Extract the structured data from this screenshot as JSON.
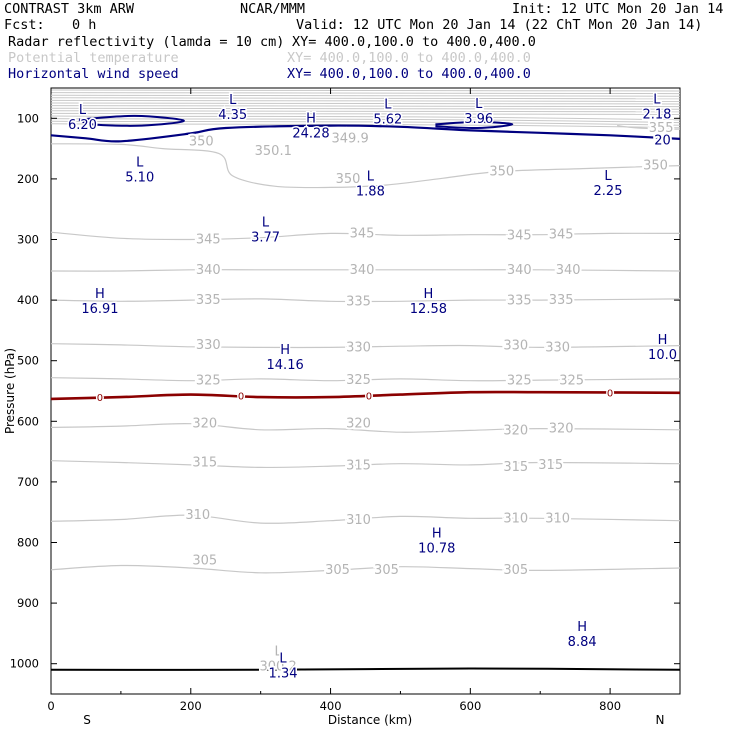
{
  "header": {
    "model": "CONTRAST  3km ARW",
    "center": "NCAR/MMM",
    "init": "Init: 12 UTC Mon 20 Jan 14",
    "fcst_label": "Fcst:",
    "fcst_value": "0 h",
    "valid": "Valid: 12 UTC Mon 20 Jan 14 (22 ChT Mon 20 Jan 14)"
  },
  "fields": [
    {
      "name": "Radar reflectivity (lamda = 10 cm)",
      "xy": "XY= 400.0,100.0 to 400.0,400.0",
      "color": "#000000"
    },
    {
      "name": "Potential temperature",
      "xy": "XY= 400.0,100.0 to 400.0,400.0",
      "color": "#c8c8c8"
    },
    {
      "name": "Horizontal wind speed",
      "xy": "XY= 400.0,100.0 to 400.0,400.0",
      "color": "#000080"
    }
  ],
  "chart_data": {
    "type": "contour",
    "xlabel": "Distance (km)",
    "ylabel": "Pressure (hPa)",
    "xlim": [
      0,
      900
    ],
    "ylim": [
      1050,
      50
    ],
    "y_inverted": true,
    "x_ticks": [
      "0",
      "200",
      "400",
      "600",
      "800"
    ],
    "x_tick_values": [
      0,
      200,
      400,
      600,
      800
    ],
    "y_ticks": [
      "100",
      "200",
      "300",
      "400",
      "500",
      "600",
      "700",
      "800",
      "900",
      "1000"
    ],
    "y_tick_values": [
      100,
      200,
      300,
      400,
      500,
      600,
      700,
      800,
      900,
      1000
    ],
    "x_end_labels": {
      "left": "S",
      "right": "N"
    },
    "colors": {
      "theta": "#c8c8c8",
      "wind": "#000080",
      "freezing": "#8b0000",
      "ground": "#000000"
    },
    "theta_contours": [
      {
        "level": 305,
        "points": [
          [
            0,
            845
          ],
          [
            100,
            838
          ],
          [
            200,
            842
          ],
          [
            300,
            850
          ],
          [
            400,
            846
          ],
          [
            500,
            840
          ],
          [
            600,
            843
          ],
          [
            700,
            846
          ],
          [
            900,
            842
          ]
        ],
        "labels": [
          {
            "x": 220,
            "p": 830,
            "text": "305"
          },
          {
            "x": 410,
            "p": 845,
            "text": "305"
          },
          {
            "x": 480,
            "p": 845,
            "text": "305"
          },
          {
            "x": 665,
            "p": 845,
            "text": "305"
          }
        ]
      },
      {
        "level": 310,
        "points": [
          [
            0,
            765
          ],
          [
            100,
            762
          ],
          [
            200,
            755
          ],
          [
            300,
            768
          ],
          [
            400,
            764
          ],
          [
            500,
            757
          ],
          [
            600,
            760
          ],
          [
            700,
            760
          ],
          [
            900,
            764
          ]
        ],
        "labels": [
          {
            "x": 210,
            "p": 755,
            "text": "310"
          },
          {
            "x": 440,
            "p": 763,
            "text": "310"
          },
          {
            "x": 665,
            "p": 760,
            "text": "310"
          },
          {
            "x": 725,
            "p": 760,
            "text": "310"
          }
        ]
      },
      {
        "level": 315,
        "points": [
          [
            0,
            665
          ],
          [
            100,
            668
          ],
          [
            200,
            672
          ],
          [
            300,
            676
          ],
          [
            400,
            674
          ],
          [
            500,
            670
          ],
          [
            600,
            672
          ],
          [
            700,
            668
          ],
          [
            900,
            670
          ]
        ],
        "labels": [
          {
            "x": 220,
            "p": 668,
            "text": "315"
          },
          {
            "x": 440,
            "p": 673,
            "text": "315"
          },
          {
            "x": 665,
            "p": 675,
            "text": "315"
          },
          {
            "x": 715,
            "p": 672,
            "text": "315"
          }
        ]
      },
      {
        "level": 320,
        "points": [
          [
            0,
            610
          ],
          [
            100,
            608
          ],
          [
            200,
            604
          ],
          [
            300,
            614
          ],
          [
            400,
            612
          ],
          [
            500,
            618
          ],
          [
            600,
            615
          ],
          [
            700,
            612
          ],
          [
            900,
            614
          ]
        ],
        "labels": [
          {
            "x": 220,
            "p": 604,
            "text": "320"
          },
          {
            "x": 440,
            "p": 604,
            "text": "320"
          },
          {
            "x": 665,
            "p": 615,
            "text": "320"
          },
          {
            "x": 730,
            "p": 612,
            "text": "320"
          }
        ]
      },
      {
        "level": 325,
        "points": [
          [
            0,
            528
          ],
          [
            100,
            530
          ],
          [
            200,
            533
          ],
          [
            300,
            530
          ],
          [
            400,
            533
          ],
          [
            500,
            530
          ],
          [
            600,
            533
          ],
          [
            700,
            532
          ],
          [
            900,
            530
          ]
        ],
        "labels": [
          {
            "x": 225,
            "p": 533,
            "text": "325"
          },
          {
            "x": 440,
            "p": 532,
            "text": "325"
          },
          {
            "x": 670,
            "p": 533,
            "text": "325"
          },
          {
            "x": 745,
            "p": 533,
            "text": "325"
          }
        ]
      },
      {
        "level": 330,
        "points": [
          [
            0,
            472
          ],
          [
            100,
            474
          ],
          [
            200,
            477
          ],
          [
            300,
            478
          ],
          [
            400,
            478
          ],
          [
            500,
            476
          ],
          [
            600,
            475
          ],
          [
            700,
            478
          ],
          [
            900,
            475
          ]
        ],
        "labels": [
          {
            "x": 225,
            "p": 474,
            "text": "330"
          },
          {
            "x": 440,
            "p": 478,
            "text": "330"
          },
          {
            "x": 665,
            "p": 475,
            "text": "330"
          },
          {
            "x": 725,
            "p": 478,
            "text": "330"
          }
        ]
      },
      {
        "level": 335,
        "points": [
          [
            0,
            400
          ],
          [
            100,
            402
          ],
          [
            200,
            400
          ],
          [
            300,
            398
          ],
          [
            400,
            402
          ],
          [
            500,
            402
          ],
          [
            600,
            400
          ],
          [
            700,
            400
          ],
          [
            900,
            398
          ]
        ],
        "labels": [
          {
            "x": 225,
            "p": 400,
            "text": "335"
          },
          {
            "x": 440,
            "p": 402,
            "text": "335"
          },
          {
            "x": 670,
            "p": 401,
            "text": "335"
          },
          {
            "x": 730,
            "p": 400,
            "text": "335"
          }
        ]
      },
      {
        "level": 340,
        "points": [
          [
            0,
            352
          ],
          [
            100,
            352
          ],
          [
            200,
            350
          ],
          [
            300,
            350
          ],
          [
            400,
            350
          ],
          [
            500,
            350
          ],
          [
            600,
            350
          ],
          [
            700,
            350
          ],
          [
            900,
            352
          ]
        ],
        "labels": [
          {
            "x": 225,
            "p": 350,
            "text": "340"
          },
          {
            "x": 445,
            "p": 350,
            "text": "340"
          },
          {
            "x": 670,
            "p": 350,
            "text": "340"
          },
          {
            "x": 740,
            "p": 350,
            "text": "340"
          }
        ]
      },
      {
        "level": 345,
        "points": [
          [
            0,
            288
          ],
          [
            100,
            298
          ],
          [
            200,
            300
          ],
          [
            300,
            297
          ],
          [
            400,
            290
          ],
          [
            500,
            293
          ],
          [
            600,
            292
          ],
          [
            700,
            292
          ],
          [
            800,
            290
          ],
          [
            900,
            290
          ]
        ],
        "labels": [
          {
            "x": 225,
            "p": 300,
            "text": "345"
          },
          {
            "x": 445,
            "p": 290,
            "text": "345"
          },
          {
            "x": 670,
            "p": 293,
            "text": "345"
          },
          {
            "x": 730,
            "p": 292,
            "text": "345"
          }
        ]
      },
      {
        "level": 350,
        "points": [
          [
            0,
            142
          ],
          [
            100,
            143
          ],
          [
            160,
            150
          ],
          [
            240,
            158
          ],
          [
            260,
            195
          ],
          [
            320,
            212
          ],
          [
            400,
            214
          ],
          [
            480,
            210
          ],
          [
            560,
            199
          ],
          [
            640,
            188
          ],
          [
            760,
            183
          ],
          [
            900,
            178
          ]
        ],
        "labels": [
          {
            "x": 215,
            "p": 138,
            "text": "350"
          },
          {
            "x": 318,
            "p": 154,
            "text": "350.1"
          },
          {
            "x": 428,
            "p": 133,
            "text": "349.9"
          },
          {
            "x": 425,
            "p": 200,
            "text": "350"
          },
          {
            "x": 645,
            "p": 188,
            "text": "350"
          },
          {
            "x": 865,
            "p": 178,
            "text": "350"
          }
        ]
      },
      {
        "level": 355,
        "points": [
          [
            810,
            112
          ],
          [
            840,
            116
          ],
          [
            900,
            118
          ]
        ],
        "labels": [
          {
            "x": 873,
            "p": 116,
            "text": "355"
          }
        ]
      }
    ],
    "wind_contours": [
      {
        "level": 20,
        "points": [
          [
            0,
            128
          ],
          [
            50,
            133
          ],
          [
            100,
            138
          ],
          [
            200,
            125
          ],
          [
            250,
            116
          ],
          [
            400,
            112
          ],
          [
            500,
            114
          ],
          [
            600,
            120
          ],
          [
            700,
            124
          ],
          [
            800,
            128
          ],
          [
            900,
            134
          ]
        ],
        "labels": [
          {
            "x": 875,
            "p": 137,
            "text": "20"
          }
        ]
      }
    ],
    "wind_closed": [
      {
        "level": 20,
        "points": [
          [
            40,
            102
          ],
          [
            120,
            96
          ],
          [
            190,
            104
          ],
          [
            130,
            112
          ],
          [
            60,
            110
          ],
          [
            40,
            102
          ]
        ]
      },
      {
        "level": 20,
        "points": [
          [
            550,
            110
          ],
          [
            610,
            106
          ],
          [
            660,
            110
          ],
          [
            610,
            116
          ],
          [
            550,
            113
          ]
        ]
      }
    ],
    "freezing_level": {
      "level": 0,
      "points": [
        [
          0,
          563
        ],
        [
          100,
          560
        ],
        [
          200,
          556
        ],
        [
          300,
          560
        ],
        [
          400,
          560
        ],
        [
          500,
          556
        ],
        [
          600,
          552
        ],
        [
          700,
          552
        ],
        [
          900,
          553
        ]
      ],
      "labels": [
        {
          "x": 70,
          "p": 561,
          "text": "0"
        },
        {
          "x": 272,
          "p": 558,
          "text": "0"
        },
        {
          "x": 455,
          "p": 558,
          "text": "0"
        },
        {
          "x": 800,
          "p": 553,
          "text": "0"
        }
      ]
    },
    "ground": {
      "points": [
        [
          0,
          1010
        ],
        [
          300,
          1010
        ],
        [
          600,
          1008
        ],
        [
          900,
          1010
        ]
      ]
    },
    "extrema": [
      {
        "type": "L",
        "value": "6.20",
        "x": 45,
        "p": 96
      },
      {
        "type": "L",
        "value": "4.35",
        "x": 260,
        "p": 80
      },
      {
        "type": "H",
        "value": "24.28",
        "x": 372,
        "p": 110
      },
      {
        "type": "L",
        "value": "5.62",
        "x": 482,
        "p": 87
      },
      {
        "type": "L",
        "value": "3.96",
        "x": 612,
        "p": 86
      },
      {
        "type": "L",
        "value": "2.18",
        "x": 867,
        "p": 79
      },
      {
        "type": "L",
        "value": "5.10",
        "x": 127,
        "p": 183
      },
      {
        "type": "L",
        "value": "1.88",
        "x": 457,
        "p": 206
      },
      {
        "type": "L",
        "value": "2.25",
        "x": 797,
        "p": 205
      },
      {
        "type": "L",
        "value": "3.77",
        "x": 307,
        "p": 282
      },
      {
        "type": "H",
        "value": "16.91",
        "x": 70,
        "p": 400
      },
      {
        "type": "H",
        "value": "12.58",
        "x": 540,
        "p": 400
      },
      {
        "type": "H",
        "value": "10.0",
        "x": 875,
        "p": 476
      },
      {
        "type": "H",
        "value": "14.16",
        "x": 335,
        "p": 492
      },
      {
        "type": "H",
        "value": "10.78",
        "x": 552,
        "p": 795
      },
      {
        "type": "H",
        "value": "8.84",
        "x": 760,
        "p": 949
      },
      {
        "type": "L",
        "value": "1.34",
        "x": 332,
        "p": 1001
      }
    ],
    "ground_note": {
      "type": "L",
      "value": "300.2",
      "x": 325,
      "p": 990
    }
  }
}
